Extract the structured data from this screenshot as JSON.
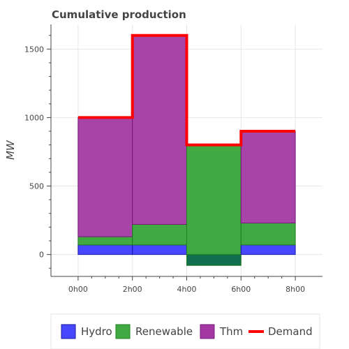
{
  "chart_data": {
    "type": "area",
    "title": "Cumulative production",
    "xlabel": "",
    "ylabel": "MW",
    "x_ticks": [
      "0h00",
      "2h00",
      "4h00",
      "6h00",
      "8h00"
    ],
    "xlim_hours": [
      -1,
      9
    ],
    "ylim": [
      -160,
      1680
    ],
    "y_ticks": [
      0,
      500,
      1000,
      1500
    ],
    "grid": true,
    "legend_position": "bottom",
    "intervals_hours": [
      [
        0,
        2
      ],
      [
        2,
        4
      ],
      [
        4,
        6
      ],
      [
        6,
        8
      ]
    ],
    "series": [
      {
        "name": "Hydro",
        "color": "#3333ff",
        "border": "#1a1aaa",
        "values": [
          70,
          70,
          0,
          70
        ]
      },
      {
        "name": "Renewable",
        "color": "#2ca02c",
        "border": "#207f20",
        "values": [
          60,
          150,
          -80,
          160
        ],
        "value_range_interval3": [
          -80,
          800
        ]
      },
      {
        "name": "Thm",
        "color": "#992299",
        "border": "#7a1a7a",
        "values": [
          870,
          1380,
          0,
          670
        ]
      }
    ],
    "demand": {
      "name": "Demand",
      "color": "#ff0000",
      "values": [
        1000,
        1600,
        800,
        900
      ]
    },
    "overlap_color": "#126f50"
  }
}
